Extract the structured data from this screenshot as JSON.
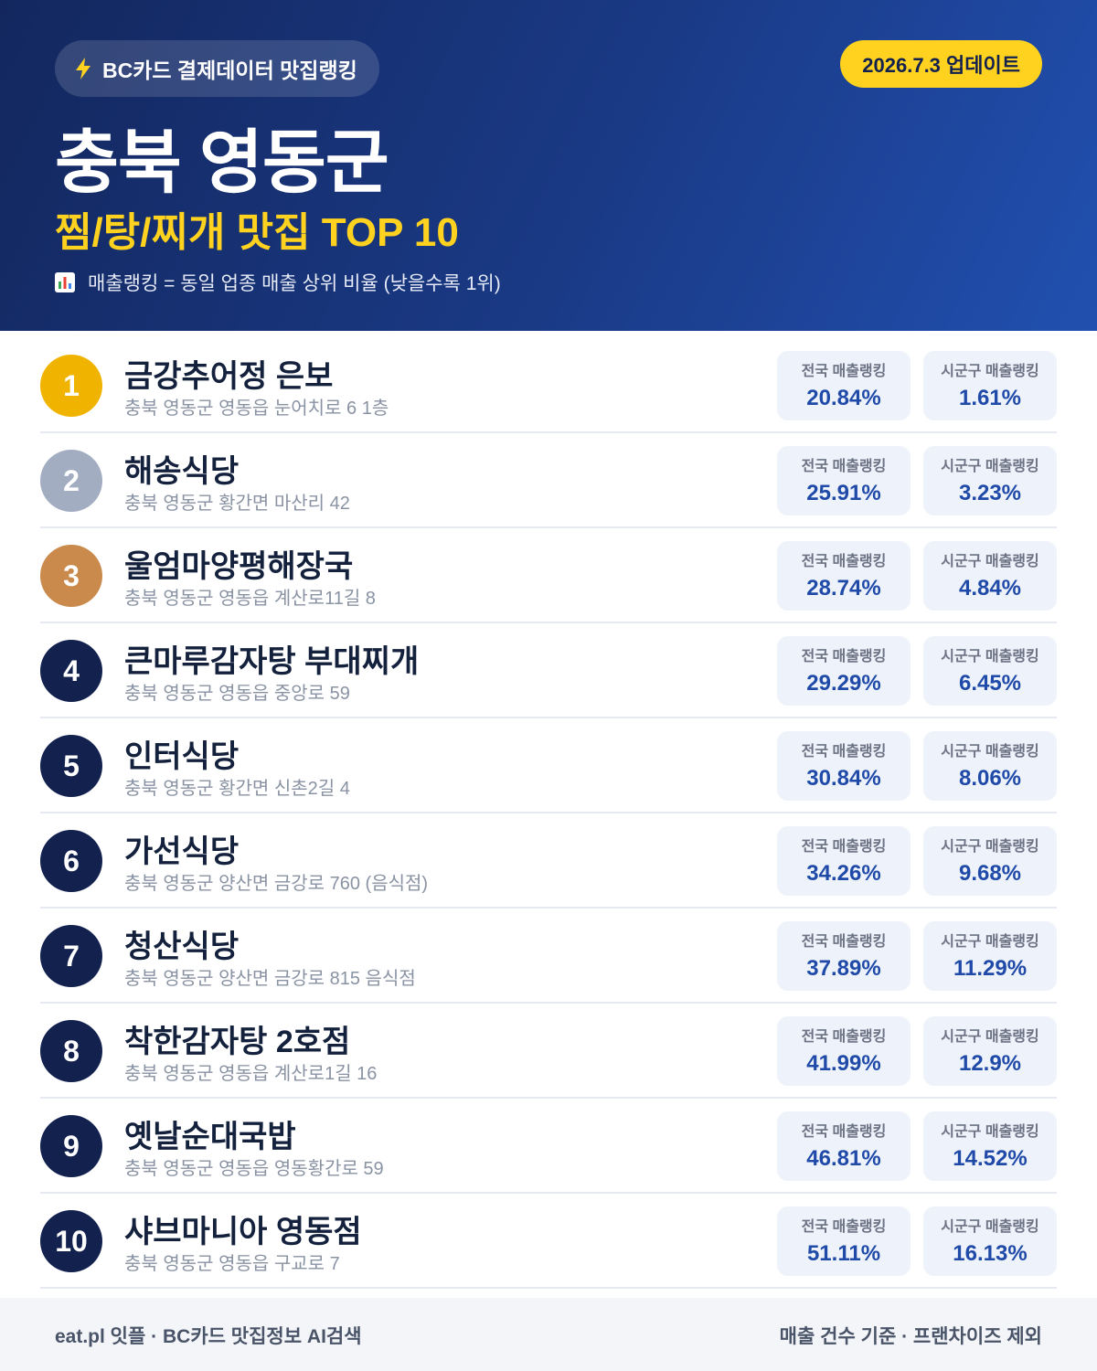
{
  "header": {
    "badge": "BC카드 결제데이터 맛집랭킹",
    "date": "2026.7.3 업데이트",
    "title": "충북 영동군",
    "subtitle": "찜/탕/찌개 맛집 TOP 10",
    "note": "매출랭킹 = 동일 업종 매출 상위 비율 (낮을수록 1위)"
  },
  "labels": {
    "national": "전국 매출랭킹",
    "local": "시군구 매출랭킹"
  },
  "rows": [
    {
      "rank": 1,
      "name": "금강추어정 은보",
      "address": "충북 영동군 영동읍 눈어치로 6 1층",
      "national": "20.84%",
      "local": "1.61%"
    },
    {
      "rank": 2,
      "name": "해송식당",
      "address": "충북 영동군 황간면 마산리 42",
      "national": "25.91%",
      "local": "3.23%"
    },
    {
      "rank": 3,
      "name": "울엄마양평해장국",
      "address": "충북 영동군 영동읍 계산로11길 8",
      "national": "28.74%",
      "local": "4.84%"
    },
    {
      "rank": 4,
      "name": "큰마루감자탕 부대찌개",
      "address": "충북 영동군 영동읍 중앙로 59",
      "national": "29.29%",
      "local": "6.45%"
    },
    {
      "rank": 5,
      "name": "인터식당",
      "address": "충북 영동군 황간면 신촌2길 4",
      "national": "30.84%",
      "local": "8.06%"
    },
    {
      "rank": 6,
      "name": "가선식당",
      "address": "충북 영동군 양산면 금강로 760 (음식점)",
      "national": "34.26%",
      "local": "9.68%"
    },
    {
      "rank": 7,
      "name": "청산식당",
      "address": "충북 영동군 양산면 금강로 815 음식점",
      "national": "37.89%",
      "local": "11.29%"
    },
    {
      "rank": 8,
      "name": "착한감자탕 2호점",
      "address": "충북 영동군 영동읍 계산로1길 16",
      "national": "41.99%",
      "local": "12.9%"
    },
    {
      "rank": 9,
      "name": "옛날순대국밥",
      "address": "충북 영동군 영동읍 영동황간로 59",
      "national": "46.81%",
      "local": "14.52%"
    },
    {
      "rank": 10,
      "name": "샤브마니아 영동점",
      "address": "충북 영동군 영동읍 구교로 7",
      "national": "51.11%",
      "local": "16.13%"
    }
  ],
  "footer": {
    "left": "eat.pl 잇플 · BC카드 맛집정보 AI검색",
    "right": "매출 건수 기준 · 프랜차이즈 제외"
  }
}
